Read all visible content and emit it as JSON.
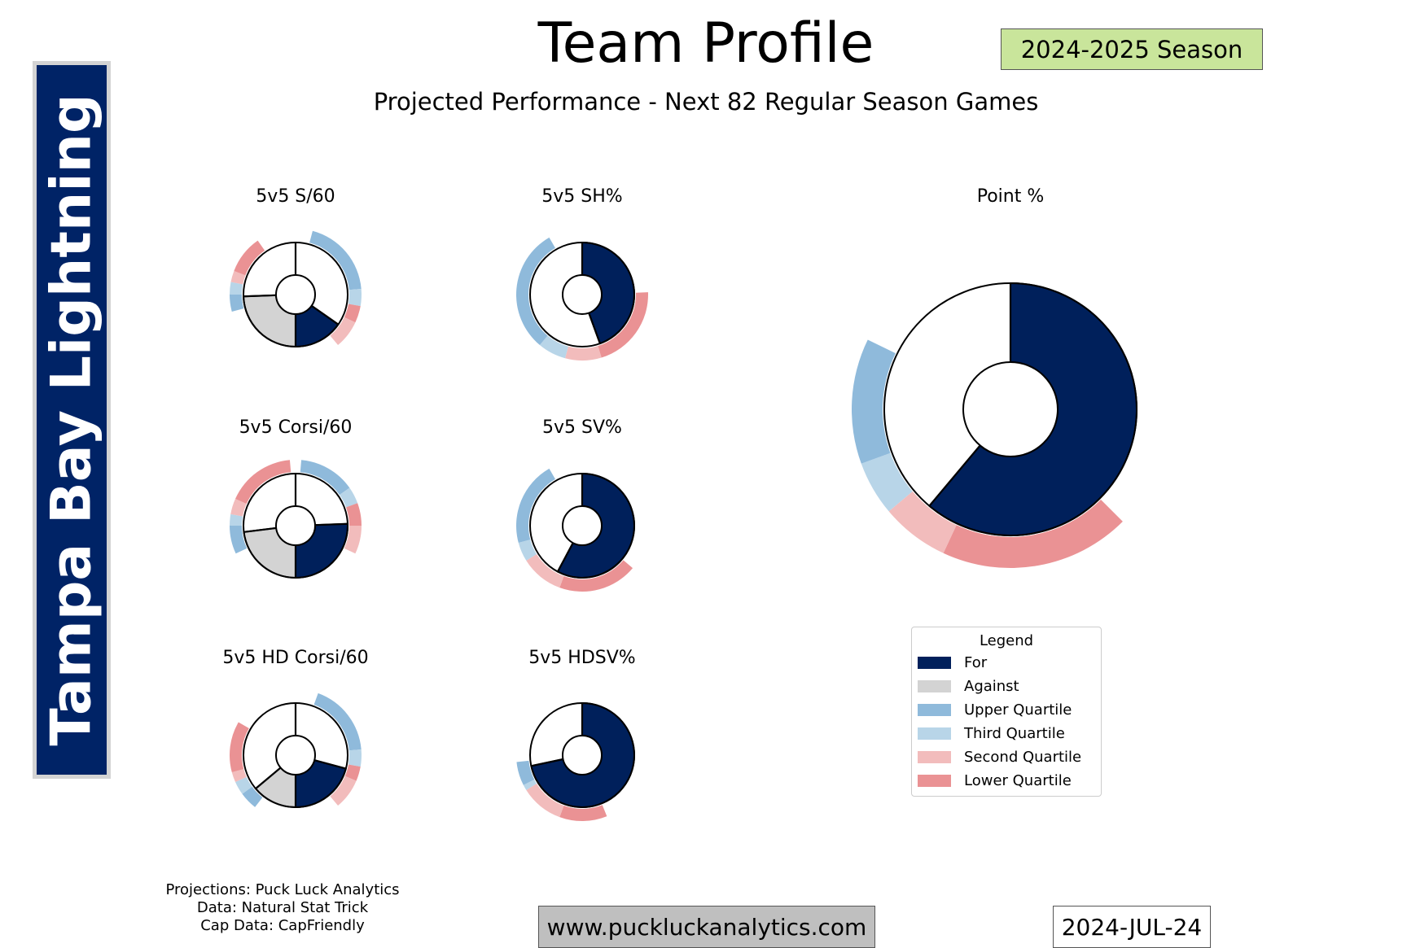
{
  "team": "Tampa Bay Lightning",
  "header": {
    "title": "Team Profile",
    "season": "2024-2025 Season",
    "subtitle": "Projected Performance - Next 82 Regular Season Games"
  },
  "colors": {
    "for": "#00205B",
    "against": "#d3d3d3",
    "upper": "#8fbadb",
    "third": "#b8d5e8",
    "second": "#f2bcbc",
    "lower": "#ea9294",
    "season_bg": "#c9e59b",
    "sidebar": "#002366"
  },
  "chart_data": [
    {
      "type": "pie",
      "title": "5v5 S/60",
      "wedges": [
        {
          "series": "For",
          "start_deg": 125,
          "end_deg": 180
        },
        {
          "series": "Against",
          "start_deg": 180,
          "end_deg": 268
        }
      ],
      "dividers_deg": [
        0,
        125,
        180,
        268
      ],
      "bands": [
        {
          "q": "upper",
          "a": [
            15,
            85
          ]
        },
        {
          "q": "third",
          "a": [
            85,
            100
          ]
        },
        {
          "q": "lower",
          "a": [
            100,
            115
          ]
        },
        {
          "q": "second",
          "a": [
            115,
            140
          ]
        },
        {
          "q": "upper",
          "a": [
            255,
            270
          ]
        },
        {
          "q": "third",
          "a": [
            270,
            281
          ]
        },
        {
          "q": "second",
          "a": [
            281,
            291
          ]
        },
        {
          "q": "lower",
          "a": [
            291,
            325
          ]
        }
      ]
    },
    {
      "type": "pie",
      "title": "5v5 SH%",
      "wedges": [
        {
          "series": "For",
          "start_deg": 0,
          "end_deg": 160
        }
      ],
      "dividers_deg": [
        0,
        160
      ],
      "bands": [
        {
          "q": "lower",
          "a": [
            88,
            163
          ]
        },
        {
          "q": "second",
          "a": [
            163,
            195
          ]
        },
        {
          "q": "third",
          "a": [
            195,
            220
          ]
        },
        {
          "q": "upper",
          "a": [
            220,
            330
          ]
        }
      ]
    },
    {
      "type": "pie",
      "title": "5v5 Corsi/60",
      "wedges": [
        {
          "series": "For",
          "start_deg": 88,
          "end_deg": 180
        },
        {
          "series": "Against",
          "start_deg": 180,
          "end_deg": 263
        }
      ],
      "dividers_deg": [
        0,
        88,
        180,
        263
      ],
      "bands": [
        {
          "q": "upper",
          "a": [
            5,
            55
          ]
        },
        {
          "q": "third",
          "a": [
            55,
            70
          ]
        },
        {
          "q": "lower",
          "a": [
            70,
            90
          ]
        },
        {
          "q": "second",
          "a": [
            90,
            115
          ]
        },
        {
          "q": "upper",
          "a": [
            245,
            270
          ]
        },
        {
          "q": "third",
          "a": [
            270,
            280
          ]
        },
        {
          "q": "second",
          "a": [
            280,
            294
          ]
        },
        {
          "q": "lower",
          "a": [
            294,
            355
          ]
        }
      ]
    },
    {
      "type": "pie",
      "title": "5v5 SV%",
      "wedges": [
        {
          "series": "For",
          "start_deg": 0,
          "end_deg": 208
        }
      ],
      "dividers_deg": [
        0,
        208
      ],
      "bands": [
        {
          "q": "lower",
          "a": [
            130,
            200
          ]
        },
        {
          "q": "second",
          "a": [
            200,
            238
          ]
        },
        {
          "q": "third",
          "a": [
            238,
            255
          ]
        },
        {
          "q": "upper",
          "a": [
            255,
            330
          ]
        }
      ]
    },
    {
      "type": "pie",
      "title": "5v5 HD Corsi/60",
      "wedges": [
        {
          "series": "For",
          "start_deg": 105,
          "end_deg": 180
        },
        {
          "series": "Against",
          "start_deg": 180,
          "end_deg": 230
        }
      ],
      "dividers_deg": [
        0,
        105,
        180,
        230
      ],
      "bands": [
        {
          "q": "upper",
          "a": [
            20,
            85
          ]
        },
        {
          "q": "third",
          "a": [
            85,
            100
          ]
        },
        {
          "q": "lower",
          "a": [
            100,
            113
          ]
        },
        {
          "q": "second",
          "a": [
            113,
            140
          ]
        },
        {
          "q": "upper",
          "a": [
            218,
            234
          ]
        },
        {
          "q": "third",
          "a": [
            234,
            246
          ]
        },
        {
          "q": "second",
          "a": [
            246,
            255
          ]
        },
        {
          "q": "lower",
          "a": [
            255,
            300
          ]
        }
      ]
    },
    {
      "type": "pie",
      "title": "5v5 HDSV%",
      "wedges": [
        {
          "series": "For",
          "start_deg": 0,
          "end_deg": 258
        }
      ],
      "dividers_deg": [
        0,
        258
      ],
      "bands": [
        {
          "q": "lower",
          "a": [
            158,
            200
          ]
        },
        {
          "q": "second",
          "a": [
            200,
            238
          ]
        },
        {
          "q": "third",
          "a": [
            238,
            243
          ]
        },
        {
          "q": "upper",
          "a": [
            243,
            264
          ]
        }
      ]
    },
    {
      "type": "pie",
      "title": "Point %",
      "wedges": [
        {
          "series": "For",
          "start_deg": 0,
          "end_deg": 220
        }
      ],
      "dividers_deg": [
        0,
        220
      ],
      "bands": [
        {
          "q": "lower",
          "a": [
            135,
            205
          ]
        },
        {
          "q": "second",
          "a": [
            205,
            230
          ]
        },
        {
          "q": "third",
          "a": [
            230,
            250
          ]
        },
        {
          "q": "upper",
          "a": [
            250,
            296
          ]
        }
      ]
    }
  ],
  "legend": {
    "title": "Legend",
    "items": [
      {
        "key": "for",
        "label": "For"
      },
      {
        "key": "against",
        "label": "Against"
      },
      {
        "key": "upper",
        "label": "Upper Quartile"
      },
      {
        "key": "third",
        "label": "Third Quartile"
      },
      {
        "key": "second",
        "label": "Second Quartile"
      },
      {
        "key": "lower",
        "label": "Lower Quartile"
      }
    ]
  },
  "footer": {
    "credits": [
      "Projections: Puck Luck Analytics",
      "Data: Natural Stat Trick",
      "Cap Data: CapFriendly"
    ],
    "website": "www.puckluckanalytics.com",
    "date": "2024-JUL-24"
  }
}
